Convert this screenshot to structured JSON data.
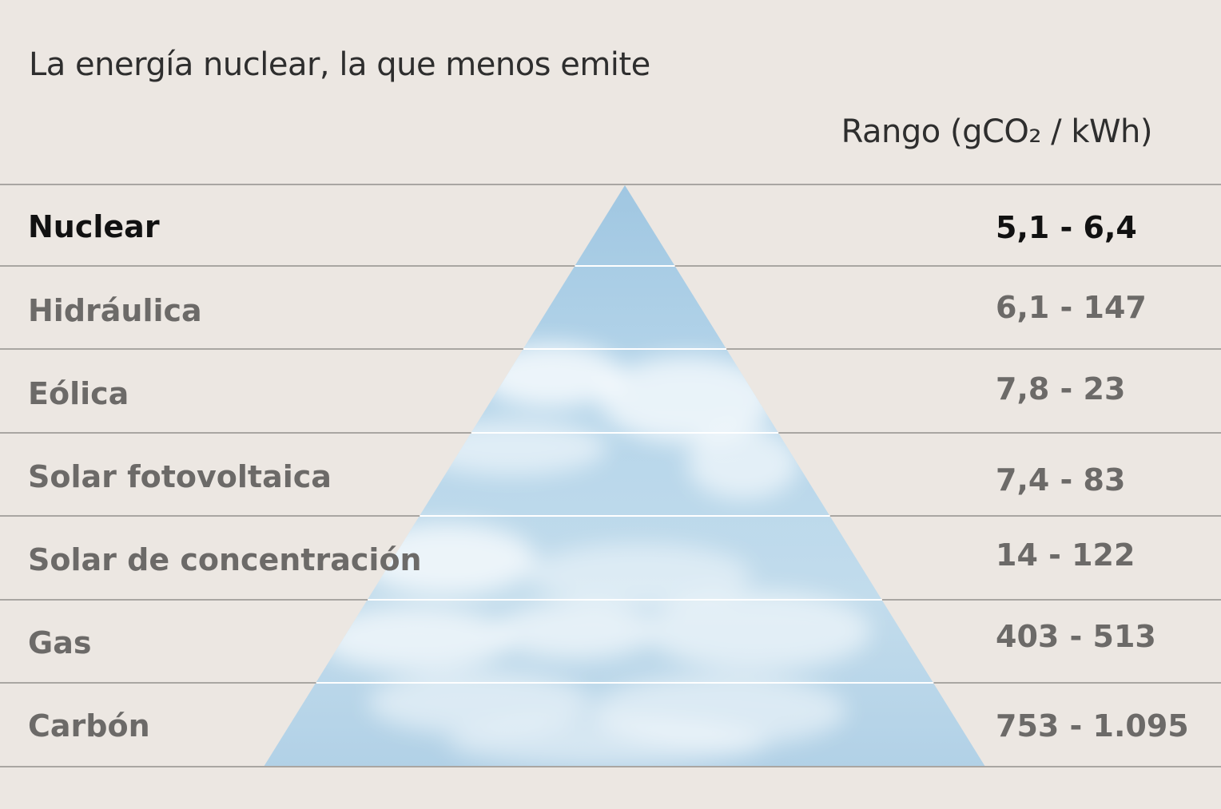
{
  "title": "La energía nuclear, la que menos emite",
  "range_header": "Rango (gCO₂ / kWh)",
  "chart_data": {
    "type": "table",
    "title": "La energía nuclear, la que menos emite",
    "column_headers": [
      "",
      "Rango (gCO₂ / kWh)"
    ],
    "rows": [
      {
        "name": "Nuclear",
        "range": "5,1 - 6,4",
        "min": 5.1,
        "max": 6.4,
        "highlight": true
      },
      {
        "name": "Hidráulica",
        "range": "6,1 - 147",
        "min": 6.1,
        "max": 147,
        "highlight": false
      },
      {
        "name": "Eólica",
        "range": "7,8 - 23",
        "min": 7.8,
        "max": 23,
        "highlight": false
      },
      {
        "name": "Solar fotovoltaica",
        "range": "7,4 - 83",
        "min": 7.4,
        "max": 83,
        "highlight": false
      },
      {
        "name": "Solar de concentración",
        "range": "14 - 122",
        "min": 14,
        "max": 122,
        "highlight": false
      },
      {
        "name": "Gas",
        "range": "403 - 513",
        "min": 403,
        "max": 513,
        "highlight": false
      },
      {
        "name": "Carbón",
        "range": "753 - 1.095",
        "min": 753,
        "max": 1095,
        "highlight": false
      }
    ]
  },
  "colors": {
    "background": "#ece7e2",
    "separator": "#a9a6a2",
    "pyramid_sky": "#a9cce4",
    "highlight_text": "#111111",
    "muted_text": "#6c6a68",
    "title_text": "#2e2e2e"
  }
}
